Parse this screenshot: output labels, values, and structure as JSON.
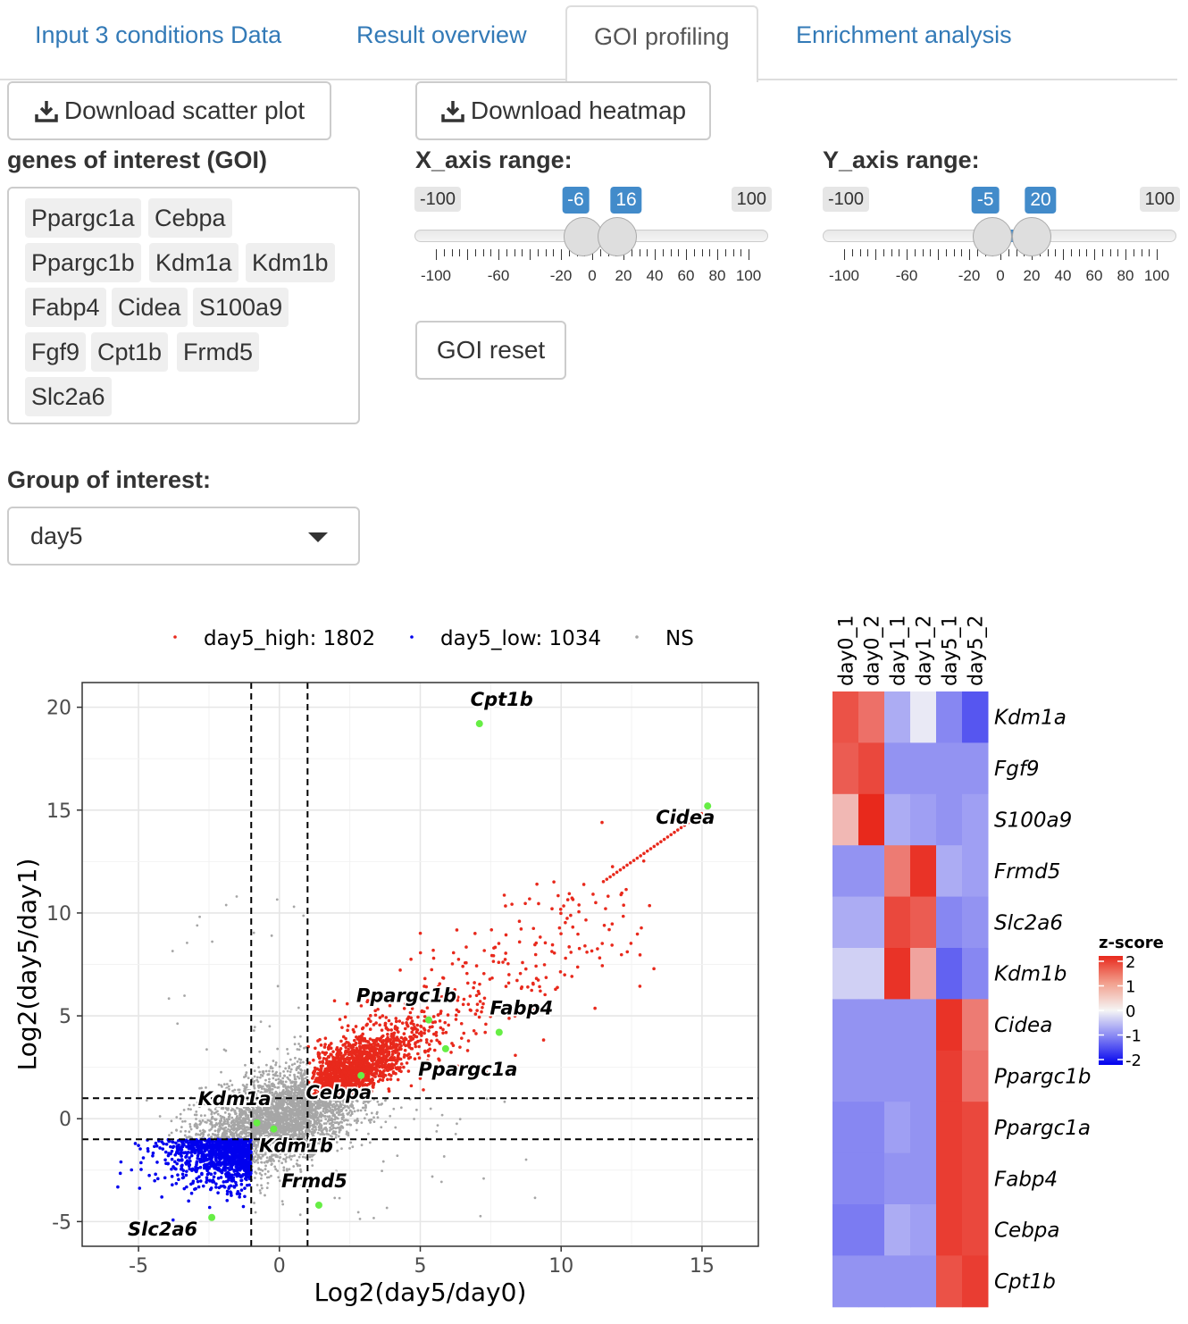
{
  "tabs": [
    {
      "label": "Input 3 conditions Data"
    },
    {
      "label": "Result overview"
    },
    {
      "label": "GOI profiling"
    },
    {
      "label": "Enrichment analysis"
    }
  ],
  "buttons": {
    "download_scatter": "Download scatter plot",
    "download_heatmap": "Download heatmap",
    "goi_reset": "GOI reset"
  },
  "goi": {
    "label": "genes of interest (GOI)",
    "genes": [
      "Ppargc1a",
      "Cebpa",
      "Ppargc1b",
      "Kdm1a",
      "Kdm1b",
      "Fabp4",
      "Cidea",
      "S100a9",
      "Fgf9",
      "Cpt1b",
      "Frmd5",
      "Slc2a6"
    ]
  },
  "x_range": {
    "label": "X_axis range:",
    "min": -100,
    "max": 100,
    "from": -6,
    "to": 16,
    "grid": [
      "-100",
      "-60",
      "-20",
      "0",
      "20",
      "40",
      "60",
      "80",
      "100"
    ]
  },
  "y_range": {
    "label": "Y_axis range:",
    "min": -100,
    "max": 100,
    "from": -5,
    "to": 20,
    "grid": [
      "-100",
      "-60",
      "-20",
      "0",
      "20",
      "40",
      "60",
      "80",
      "100"
    ]
  },
  "group": {
    "label": "Group of interest:",
    "value": "day5"
  },
  "chart_data": [
    {
      "type": "scatter",
      "xlabel": "Log2(day5/day0)",
      "ylabel": "Log2(day5/day1)",
      "xlim": [
        -7,
        17
      ],
      "ylim": [
        -6.2,
        21.2
      ],
      "xticks": [
        -5,
        0,
        5,
        10,
        15
      ],
      "yticks": [
        -5,
        0,
        5,
        10,
        15,
        20
      ],
      "thresholds": {
        "x": [
          -1,
          1
        ],
        "y": [
          -1,
          1
        ]
      },
      "legend": [
        {
          "label": "day5_high: 1802",
          "color": "#e8291c"
        },
        {
          "label": "day5_low: 1034",
          "color": "#0000ee"
        },
        {
          "label": "NS",
          "color": "#a6a6a6"
        }
      ],
      "highlighted_genes": [
        {
          "name": "Cpt1b",
          "x": 7.1,
          "y": 19.2
        },
        {
          "name": "Cidea",
          "x": 15.2,
          "y": 15.2
        },
        {
          "name": "Ppargc1b",
          "x": 5.3,
          "y": 4.8
        },
        {
          "name": "Fabp4",
          "x": 7.8,
          "y": 4.2
        },
        {
          "name": "Ppargc1a",
          "x": 5.9,
          "y": 3.4
        },
        {
          "name": "Cebpa",
          "x": 2.9,
          "y": 2.1
        },
        {
          "name": "Kdm1a",
          "x": -0.8,
          "y": -0.2
        },
        {
          "name": "Kdm1b",
          "x": -0.2,
          "y": -0.5
        },
        {
          "name": "Frmd5",
          "x": 1.4,
          "y": -4.2
        },
        {
          "name": "Slc2a6",
          "x": -2.4,
          "y": -4.8
        }
      ],
      "highlight_color": "#66ee44"
    },
    {
      "type": "heatmap",
      "columns": [
        "day0_1",
        "day0_2",
        "day1_1",
        "day1_2",
        "day5_1",
        "day5_2"
      ],
      "rows": [
        "Kdm1a",
        "Fgf9",
        "S100a9",
        "Frmd5",
        "Slc2a6",
        "Kdm1b",
        "Cidea",
        "Ppargc1b",
        "Ppargc1a",
        "Fabp4",
        "Cebpa",
        "Cpt1b"
      ],
      "values": [
        [
          1.6,
          1.3,
          -0.6,
          -0.1,
          -0.9,
          -1.3
        ],
        [
          1.5,
          1.7,
          -0.8,
          -0.8,
          -0.8,
          -0.8
        ],
        [
          0.6,
          2.1,
          -0.6,
          -0.7,
          -0.8,
          -0.7
        ],
        [
          -0.8,
          -0.8,
          1.2,
          1.9,
          -0.6,
          -0.7
        ],
        [
          -0.6,
          -0.6,
          1.7,
          1.5,
          -0.9,
          -0.8
        ],
        [
          -0.3,
          -0.3,
          1.9,
          0.8,
          -1.2,
          -0.9
        ],
        [
          -0.8,
          -0.8,
          -0.8,
          -0.8,
          1.9,
          1.2
        ],
        [
          -0.8,
          -0.8,
          -0.8,
          -0.8,
          1.8,
          1.3
        ],
        [
          -0.9,
          -0.9,
          -0.7,
          -0.8,
          1.8,
          1.7
        ],
        [
          -0.9,
          -0.9,
          -0.8,
          -0.8,
          1.8,
          1.7
        ],
        [
          -1.0,
          -1.0,
          -0.6,
          -0.7,
          1.8,
          1.7
        ],
        [
          -0.8,
          -0.8,
          -0.8,
          -0.8,
          1.6,
          1.8
        ]
      ],
      "legend_title": "z-score",
      "legend_ticks": [
        "2",
        "1",
        "0",
        "-1",
        "-2"
      ]
    }
  ]
}
